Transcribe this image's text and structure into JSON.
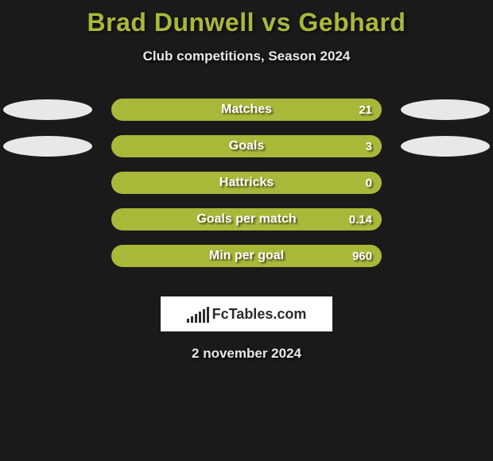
{
  "title": "Brad Dunwell vs Gebhard",
  "subtitle": "Club competitions, Season 2024",
  "bar_color": "#aab83a",
  "background_color": "#1a1a1a",
  "ellipse_color": "#e8e8e8",
  "text_color": "#e8e8e8",
  "title_color": "#aab83a",
  "bar_text_color": "#ffffff",
  "label_fontsize": 16,
  "value_fontsize": 15,
  "title_fontsize": 32,
  "subtitle_fontsize": 17,
  "rows": [
    {
      "label": "Matches",
      "value": "21",
      "show_ellipses": true
    },
    {
      "label": "Goals",
      "value": "3",
      "show_ellipses": true
    },
    {
      "label": "Hattricks",
      "value": "0",
      "show_ellipses": false
    },
    {
      "label": "Goals per match",
      "value": "0.14",
      "show_ellipses": false
    },
    {
      "label": "Min per goal",
      "value": "960",
      "show_ellipses": false
    }
  ],
  "logo_text": "FcTables.com",
  "logo_bar_heights": [
    5,
    8,
    11,
    14,
    17,
    20
  ],
  "date": "2 november 2024"
}
